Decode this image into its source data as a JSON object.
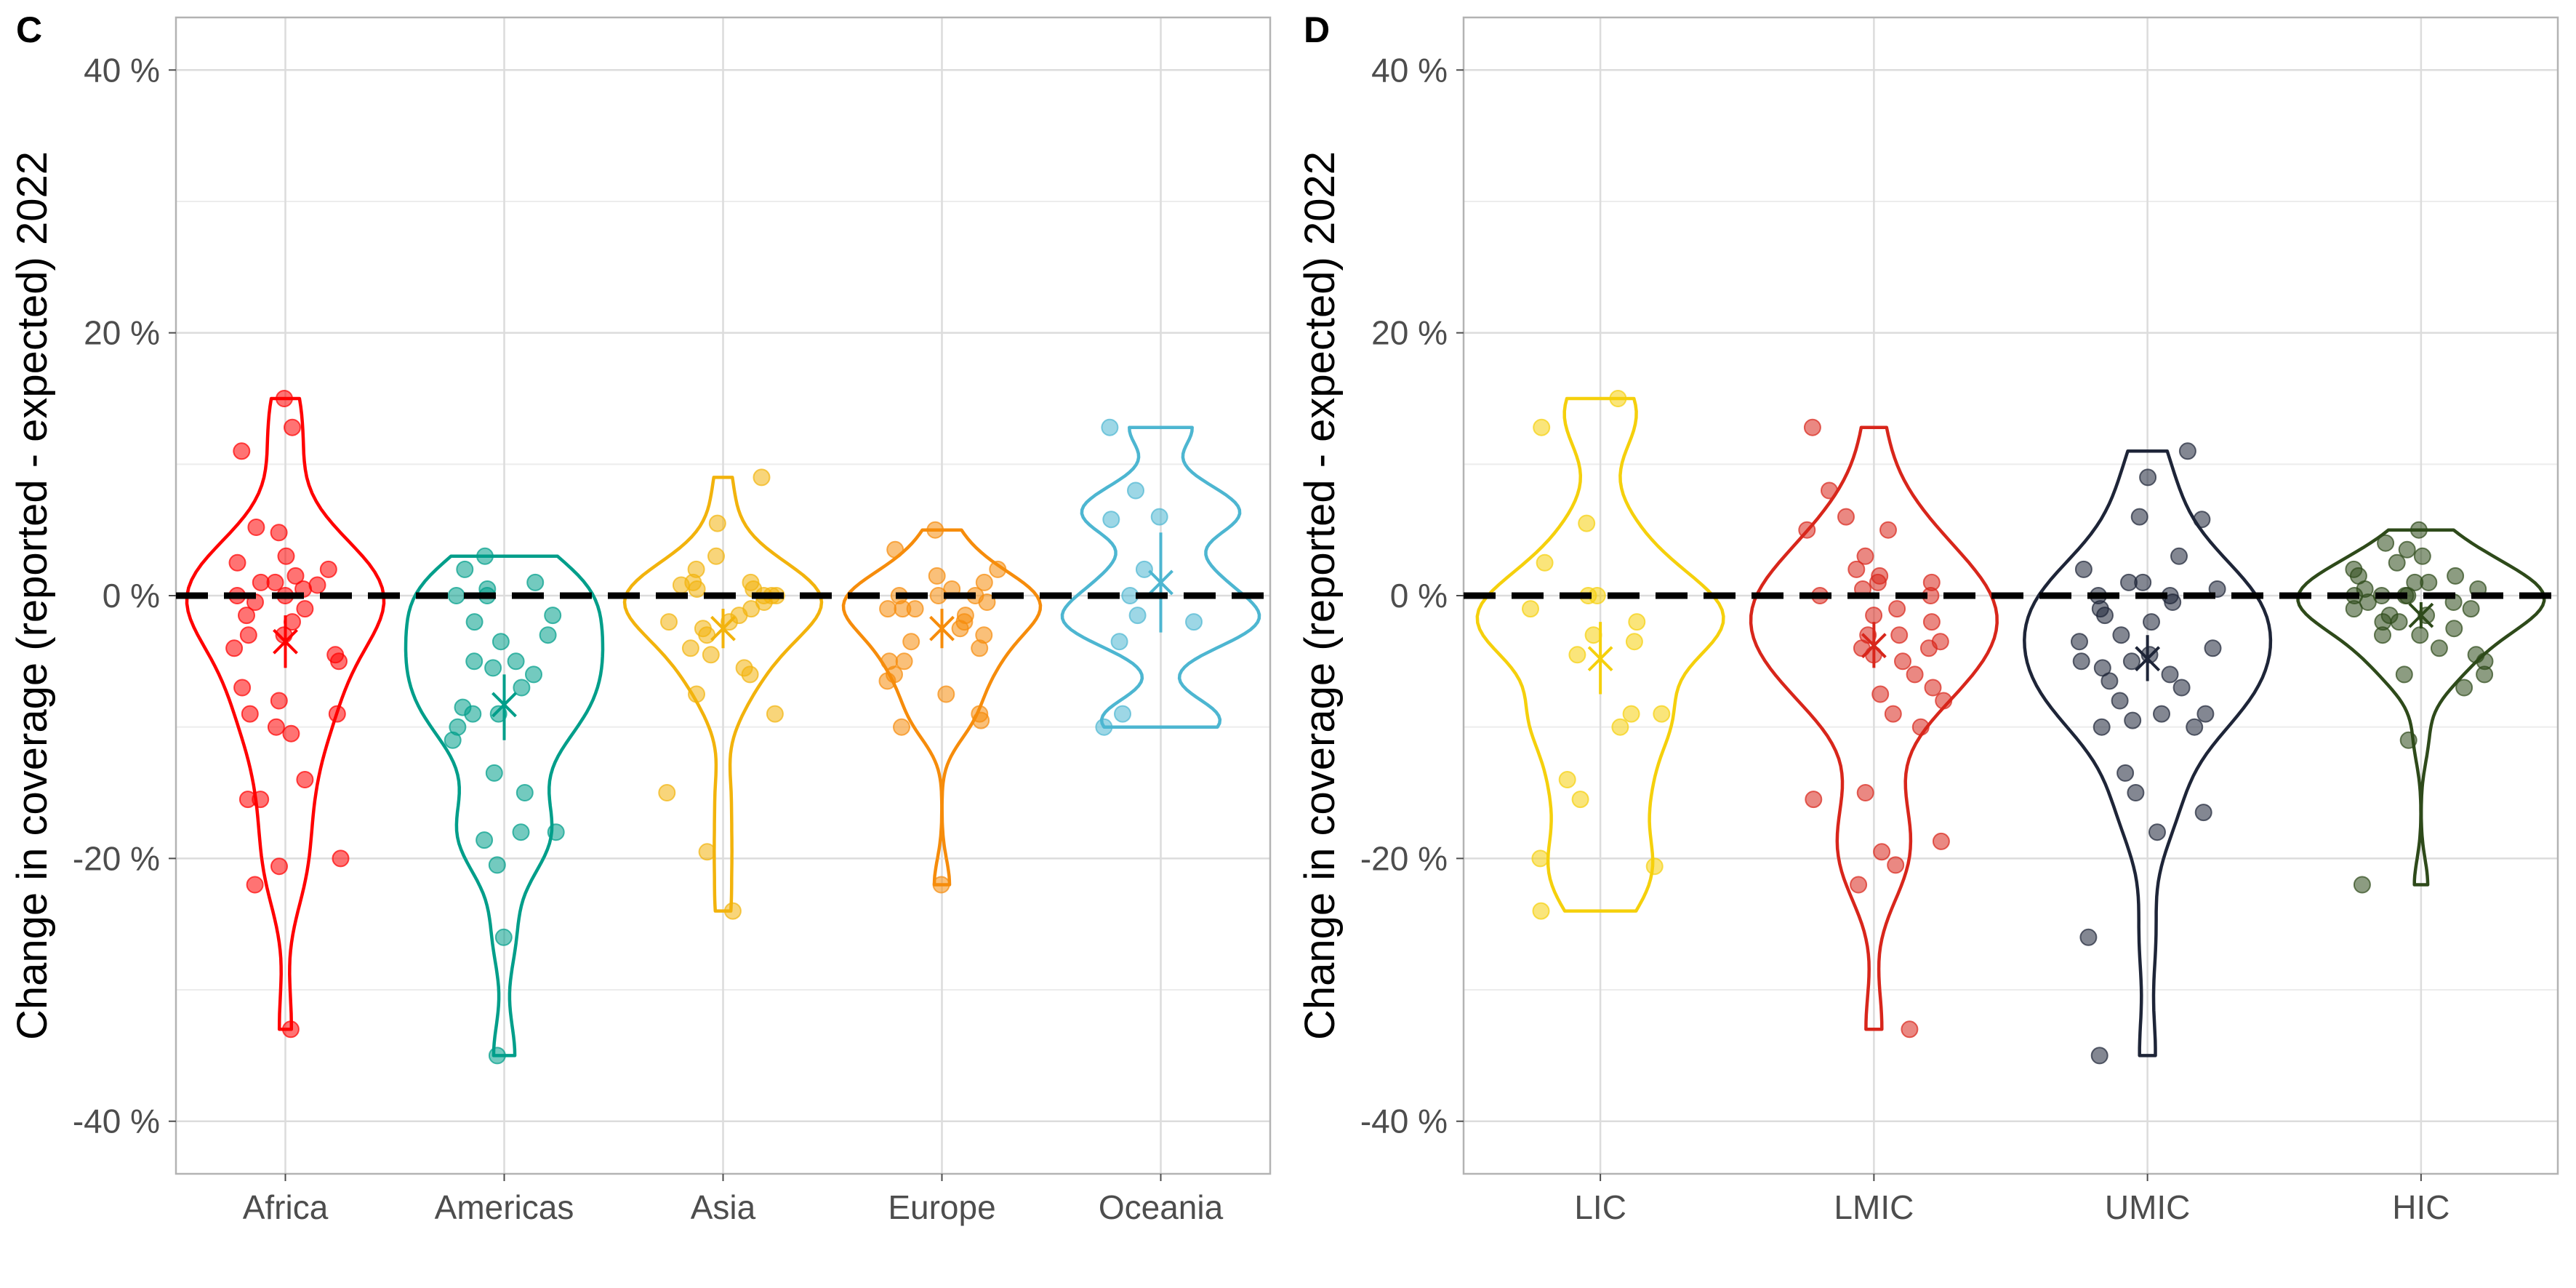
{
  "chart_data": [
    {
      "type": "violin",
      "panel_tag": "C",
      "ylabel": "Change in coverage (reported - expected) 2022",
      "ylim": [
        -44,
        44
      ],
      "yticks": [
        -40,
        -20,
        0,
        20,
        40
      ],
      "ytick_labels": [
        "-40 %",
        "-20 %",
        "0 %",
        "20 %",
        "40 %"
      ],
      "reference_line": 0,
      "grid": true,
      "categories": [
        "Africa",
        "Americas",
        "Asia",
        "Europe",
        "Oceania"
      ],
      "series": [
        {
          "color": "#ff0000",
          "mean": -3.5,
          "ci": [
            -5.5,
            -1.5
          ],
          "min": -33,
          "max": 15,
          "points": [
            15,
            12.8,
            11,
            5.2,
            4.8,
            3,
            2.5,
            2,
            1.5,
            1,
            1,
            0.8,
            0.5,
            0,
            0,
            -0.5,
            -1,
            -1.5,
            -2,
            -3,
            -3,
            -4,
            -4.5,
            -5,
            -7,
            -8,
            -9,
            -9,
            -10,
            -10.5,
            -14,
            -15.5,
            -15.5,
            -20,
            -20.6,
            -22,
            -33
          ]
        },
        {
          "color": "#009e8a",
          "mean": -8.3,
          "ci": [
            -11,
            -6
          ],
          "min": -35,
          "max": 3,
          "points": [
            3,
            2,
            1,
            0.5,
            0,
            0,
            -1.5,
            -2,
            -3,
            -3.5,
            -5,
            -5,
            -5.5,
            -6,
            -7,
            -8.5,
            -9,
            -9,
            -10,
            -11,
            -13.5,
            -15,
            -18,
            -18,
            -18.6,
            -20.5,
            -26,
            -35
          ]
        },
        {
          "color": "#f2b30c",
          "mean": -2.5,
          "ci": [
            -4,
            -1
          ],
          "min": -24,
          "max": 9,
          "points": [
            9,
            5.5,
            3,
            2,
            1,
            1,
            0.8,
            0.5,
            0.5,
            0,
            0,
            0,
            -0.5,
            -1,
            -1.5,
            -2,
            -2,
            -2.5,
            -3,
            -4,
            -4.5,
            -5.5,
            -6,
            -7.5,
            -9,
            -15,
            -19.5,
            -24
          ]
        },
        {
          "color": "#f68c0b",
          "mean": -2.5,
          "ci": [
            -4,
            -1
          ],
          "min": -22,
          "max": 5,
          "points": [
            5,
            3.5,
            2,
            1.5,
            1,
            0.5,
            0,
            0,
            0,
            -0.5,
            -1,
            -1,
            -1,
            -1.5,
            -2,
            -2.5,
            -3,
            -3.5,
            -4,
            -5,
            -5,
            -6,
            -6.5,
            -7.5,
            -9,
            -9.5,
            -10,
            -22
          ]
        },
        {
          "color": "#4db6d1",
          "mean": 1,
          "ci": [
            -2.8,
            4.8
          ],
          "min": -10,
          "max": 12.8,
          "points": [
            12.8,
            8,
            6,
            5.8,
            2,
            0,
            -1.5,
            -2,
            -3.5,
            -9,
            -10
          ]
        }
      ]
    },
    {
      "type": "violin",
      "panel_tag": "D",
      "ylabel": "Change in coverage (reported - expected) 2022",
      "ylim": [
        -44,
        44
      ],
      "yticks": [
        -40,
        -20,
        0,
        20,
        40
      ],
      "ytick_labels": [
        "-40 %",
        "-20 %",
        "0 %",
        "20 %",
        "40 %"
      ],
      "reference_line": 0,
      "grid": true,
      "categories": [
        "LIC",
        "LMIC",
        "UMIC",
        "HIC"
      ],
      "series": [
        {
          "color": "#f5d00c",
          "mean": -4.8,
          "ci": [
            -7.5,
            -2
          ],
          "min": -24,
          "max": 15,
          "points": [
            15,
            12.8,
            5.5,
            2.5,
            0,
            0,
            -1,
            -2,
            -3,
            -3.5,
            -4.5,
            -9,
            -9,
            -10,
            -14,
            -15.5,
            -20,
            -20.6,
            -24
          ]
        },
        {
          "color": "#d8261b",
          "mean": -3.8,
          "ci": [
            -5.5,
            -2
          ],
          "min": -33,
          "max": 12.8,
          "points": [
            12.8,
            8,
            6,
            5,
            5,
            3,
            2,
            1.5,
            1,
            1,
            0.5,
            0,
            0,
            -1,
            -1.5,
            -2,
            -3,
            -3,
            -3.5,
            -4,
            -4,
            -4.5,
            -5,
            -6,
            -7,
            -7.5,
            -8,
            -9,
            -10,
            -15,
            -15.5,
            -18.7,
            -19.5,
            -20.5,
            -22,
            -33
          ]
        },
        {
          "color": "#1e2538",
          "mean": -4.8,
          "ci": [
            -6.5,
            -3
          ],
          "min": -35,
          "max": 11,
          "points": [
            11,
            9,
            6,
            5.8,
            3,
            2,
            1,
            1,
            0.5,
            0,
            0,
            -0.5,
            -1,
            -1.5,
            -2,
            -3,
            -3.5,
            -4,
            -4.5,
            -5,
            -5,
            -5.5,
            -6,
            -6.5,
            -7,
            -8,
            -9,
            -9,
            -9.5,
            -10,
            -10,
            -13.5,
            -15,
            -16.5,
            -18,
            -26,
            -35
          ]
        },
        {
          "color": "#2e4a1a",
          "mean": -1.5,
          "ci": [
            -2.5,
            -0.5
          ],
          "min": -22,
          "max": 5,
          "points": [
            5,
            4,
            3.5,
            3,
            2.5,
            2,
            1.5,
            1.5,
            1,
            1,
            0.5,
            0.5,
            0,
            0,
            0,
            0,
            -0.5,
            -0.5,
            -1,
            -1,
            -1.5,
            -1.5,
            -2,
            -2,
            -2.5,
            -3,
            -3,
            -4,
            -4.5,
            -5,
            -6,
            -6,
            -7,
            -11,
            -22
          ]
        }
      ]
    }
  ]
}
